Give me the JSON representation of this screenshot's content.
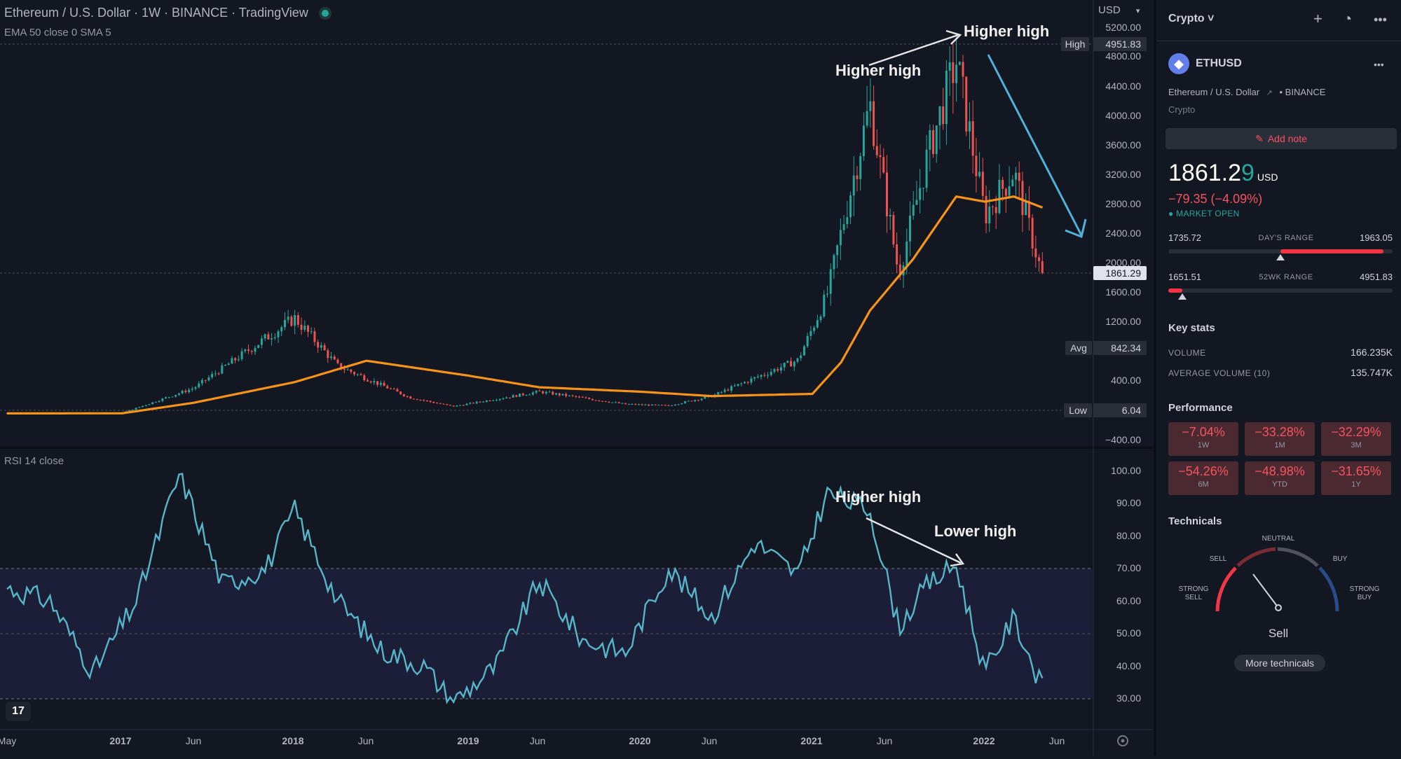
{
  "header": {
    "title": "Ethereum / U.S. Dollar · 1W · BINANCE · TradingView",
    "indicator": "EMA 50 close 0 SMA 5",
    "currency": "USD"
  },
  "rsi_panel": {
    "label": "RSI 14 close"
  },
  "price_axis": {
    "ticks": [
      "5200.00",
      "4800.00",
      "4400.00",
      "4000.00",
      "3600.00",
      "3200.00",
      "2800.00",
      "2400.00",
      "2000.00",
      "1600.00",
      "1200.00",
      "400.00",
      "−400.00"
    ],
    "high_label": "High",
    "high_value": "4951.83",
    "current_value": "1861.29",
    "avg_label": "Avg",
    "avg_value": "842.34",
    "low_label": "Low",
    "low_value": "6.04"
  },
  "rsi_axis": {
    "ticks": [
      "100.00",
      "90.00",
      "80.00",
      "70.00",
      "60.00",
      "50.00",
      "40.00",
      "30.00"
    ]
  },
  "time_axis": {
    "ticks": [
      "May",
      "2017",
      "Jun",
      "2018",
      "Jun",
      "2019",
      "Jun",
      "2020",
      "Jun",
      "2021",
      "Jun",
      "2022",
      "Jun"
    ]
  },
  "annotations": {
    "price_higher_high_1": "Higher high",
    "price_higher_high_2": "Higher high",
    "rsi_higher_high": "Higher high",
    "rsi_lower_high": "Lower high"
  },
  "colors": {
    "background": "#131722",
    "up": "#26a69a",
    "down": "#ef5350",
    "ema": "#f7931a",
    "rsi": "#56b6c8",
    "arrow": "#4fb2d6"
  },
  "chart_data": [
    {
      "type": "line",
      "title": "Ethereum / U.S. Dollar · 1W · BINANCE",
      "ylim": [
        -400,
        5200
      ],
      "series": [
        {
          "name": "EMA 50 close 0 SMA 5",
          "x": [
            "2016-05",
            "2017-01",
            "2017-06",
            "2018-01",
            "2018-06",
            "2019-01",
            "2019-06",
            "2020-01",
            "2020-06",
            "2021-01",
            "2021-03",
            "2021-05",
            "2021-08",
            "2021-11",
            "2022-01",
            "2022-03",
            "2022-05"
          ],
          "values": [
            5,
            6,
            150,
            430,
            720,
            520,
            360,
            300,
            240,
            270,
            700,
            1400,
            2100,
            2950,
            2880,
            2950,
            2800
          ]
        }
      ],
      "price_path": {
        "x": [
          "2016-05",
          "2017-01",
          "2017-06",
          "2018-01",
          "2018-04",
          "2018-09",
          "2018-12",
          "2019-06",
          "2019-12",
          "2020-03",
          "2020-06",
          "2020-12",
          "2021-02",
          "2021-05",
          "2021-07",
          "2021-09",
          "2021-11",
          "2022-01",
          "2022-03",
          "2022-05"
        ],
        "close": [
          10,
          10,
          350,
          1300,
          650,
          220,
          100,
          300,
          130,
          110,
          240,
          730,
          1600,
          4200,
          1900,
          3500,
          4800,
          2700,
          3300,
          1861.29
        ]
      }
    },
    {
      "type": "line",
      "title": "RSI 14 close",
      "ylim": [
        30,
        100
      ],
      "x": [
        "2016-05",
        "2016-08",
        "2016-11",
        "2017-02",
        "2017-05",
        "2017-08",
        "2017-11",
        "2018-01",
        "2018-04",
        "2018-07",
        "2018-10",
        "2018-12",
        "2019-03",
        "2019-06",
        "2019-09",
        "2019-12",
        "2020-03",
        "2020-06",
        "2020-09",
        "2020-12",
        "2021-02",
        "2021-05",
        "2021-07",
        "2021-09",
        "2021-11",
        "2022-01",
        "2022-03",
        "2022-05"
      ],
      "series": [
        {
          "name": "RSI",
          "values": [
            64,
            60,
            38,
            60,
            99,
            65,
            70,
            88,
            60,
            45,
            40,
            29,
            40,
            66,
            48,
            44,
            70,
            55,
            78,
            68,
            93,
            88,
            52,
            65,
            71,
            38,
            55,
            33
          ]
        }
      ]
    }
  ],
  "sidebar": {
    "watchlist_label": "Crypto ˅",
    "symbol": "ETHUSD",
    "description": "Ethereum / U.S. Dollar",
    "exchange": "• BINANCE",
    "category": "Crypto",
    "add_note": "Add note",
    "price_main": "1861.2",
    "price_last": "9",
    "price_currency": "USD",
    "change": "−79.35 (−4.09%)",
    "market_status": "● MARKET OPEN",
    "day_range": {
      "low": "1735.72",
      "caption": "DAY'S RANGE",
      "high": "1963.05",
      "fill": 0.5
    },
    "wk52_range": {
      "low": "1651.51",
      "caption": "52WK RANGE",
      "high": "4951.83",
      "fill": 0.064
    },
    "key_stats_title": "Key stats",
    "volume_label": "VOLUME",
    "volume_value": "166.235K",
    "avg_volume_label": "AVERAGE VOLUME (10)",
    "avg_volume_value": "135.747K",
    "performance_title": "Performance",
    "performance": [
      {
        "value": "−7.04%",
        "label": "1W"
      },
      {
        "value": "−33.28%",
        "label": "1M"
      },
      {
        "value": "−32.29%",
        "label": "3M"
      },
      {
        "value": "−54.26%",
        "label": "6M"
      },
      {
        "value": "−48.98%",
        "label": "YTD"
      },
      {
        "value": "−31.65%",
        "label": "1Y"
      }
    ],
    "technicals_title": "Technicals",
    "gauge": {
      "neutral": "NEUTRAL",
      "sell": "SELL",
      "buy": "BUY",
      "strong_sell_1": "STRONG",
      "strong_sell_2": "SELL",
      "strong_buy_1": "STRONG",
      "strong_buy_2": "BUY",
      "result": "Sell"
    },
    "more_technicals": "More technicals"
  }
}
